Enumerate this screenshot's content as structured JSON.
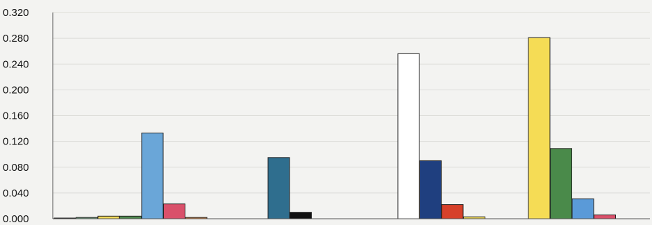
{
  "chart_data": {
    "type": "bar",
    "title": "",
    "xlabel": "",
    "ylabel": "",
    "ylim": [
      0,
      0.32
    ],
    "yticks": [
      "0.000",
      "0.040",
      "0.080",
      "0.120",
      "0.160",
      "0.200",
      "0.240",
      "0.280",
      "0.320"
    ],
    "grid": true,
    "groups": [
      {
        "bars": [
          {
            "value": 0.001,
            "color": "#2f4f8f"
          },
          {
            "value": 0.002,
            "color": "#6a9a7a"
          },
          {
            "value": 0.004,
            "color": "#f0d95a"
          },
          {
            "value": 0.004,
            "color": "#4f8a4f"
          },
          {
            "value": 0.133,
            "color": "#6aa6d8"
          },
          {
            "value": 0.023,
            "color": "#d9506a"
          },
          {
            "value": 0.002,
            "color": "#c87a3a"
          }
        ]
      },
      {
        "bars": [
          {
            "value": 0.095,
            "color": "#2f6e8e"
          },
          {
            "value": 0.01,
            "color": "#111111"
          }
        ]
      },
      {
        "bars": [
          {
            "value": 0.256,
            "color": "#ffffff"
          },
          {
            "value": 0.09,
            "color": "#1f3f7f"
          },
          {
            "value": 0.022,
            "color": "#d6402a"
          },
          {
            "value": 0.003,
            "color": "#f0d95a"
          }
        ]
      },
      {
        "bars": [
          {
            "value": 0.281,
            "color": "#f5dc55"
          },
          {
            "value": 0.109,
            "color": "#4a8a4a"
          },
          {
            "value": 0.031,
            "color": "#5a9ad8"
          },
          {
            "value": 0.006,
            "color": "#d9506a"
          }
        ]
      }
    ]
  }
}
